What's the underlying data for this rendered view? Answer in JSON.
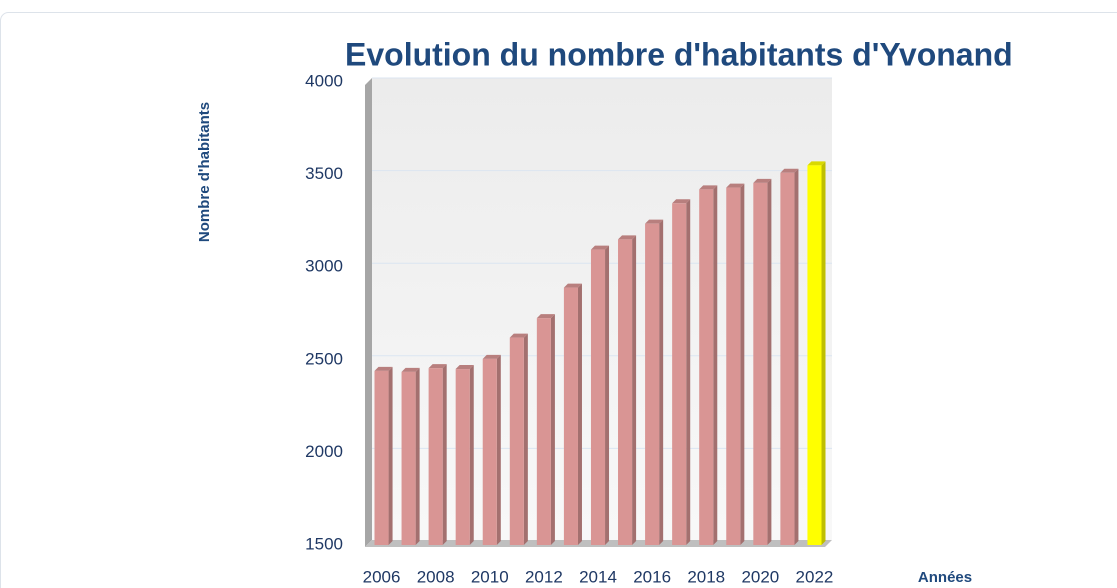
{
  "chart_data": {
    "type": "bar",
    "title": "Evolution du nombre d'habitants d'Yvonand",
    "y_label": "Nombre d'habitants",
    "x_label": "Années",
    "categories": [
      "2006",
      null,
      "2008",
      null,
      "2010",
      null,
      "2012",
      null,
      "2014",
      null,
      "2016",
      null,
      "2018",
      null,
      "2020",
      null,
      "2022"
    ],
    "values": [
      2440,
      2435,
      2455,
      2450,
      2505,
      2620,
      2725,
      2890,
      3095,
      3150,
      3235,
      3345,
      3420,
      3430,
      3455,
      3510,
      3550
    ],
    "colors": [
      "#d99594",
      "#d99594",
      "#d99594",
      "#d99594",
      "#d99594",
      "#d99594",
      "#d99594",
      "#d99594",
      "#d99594",
      "#d99594",
      "#d99594",
      "#d99594",
      "#d99594",
      "#d99594",
      "#d99594",
      "#d99594",
      "#ffff00"
    ],
    "ylim": [
      1500,
      4000
    ],
    "yticks": [
      1500,
      2000,
      2500,
      3000,
      3500,
      4000
    ],
    "grid": true
  }
}
